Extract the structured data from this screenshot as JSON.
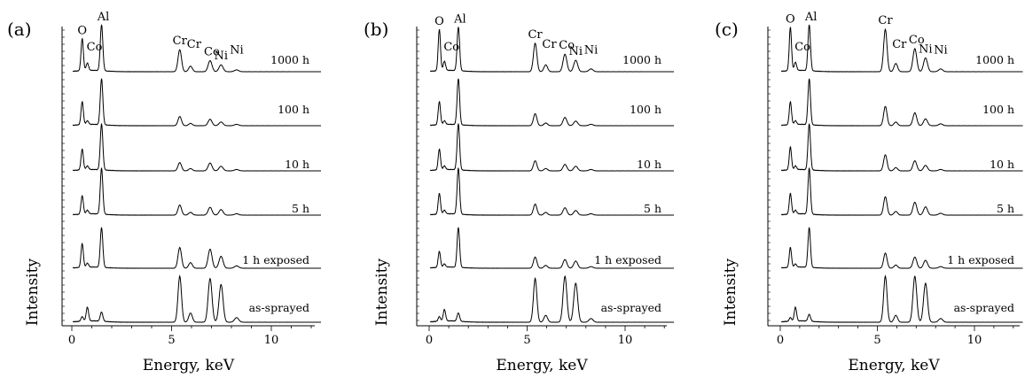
{
  "chart_data": [
    {
      "type": "line",
      "panel_label": "(a)",
      "xlabel": "Energy, keV",
      "ylabel": "Intensity",
      "xlim": [
        -0.5,
        12.5
      ],
      "xticks": [
        0,
        5,
        10
      ],
      "peak_labels": [
        {
          "text": "O",
          "x": 0.52
        },
        {
          "text": "Co",
          "x": 0.78
        },
        {
          "text": "Al",
          "x": 1.49
        },
        {
          "text": "Cr",
          "x": 5.41
        },
        {
          "text": "Cr",
          "x": 5.95
        },
        {
          "text": "Co",
          "x": 6.93
        },
        {
          "text": "Ni",
          "x": 7.48
        },
        {
          "text": "Ni",
          "x": 8.26
        }
      ],
      "series": [
        {
          "name": "1000 h",
          "peaks": [
            {
              "x": 0.52,
              "y": 0.7
            },
            {
              "x": 0.78,
              "y": 0.16
            },
            {
              "x": 1.49,
              "y": 1.0
            },
            {
              "x": 5.41,
              "y": 0.48
            },
            {
              "x": 5.95,
              "y": 0.12
            },
            {
              "x": 6.93,
              "y": 0.24
            },
            {
              "x": 7.48,
              "y": 0.15
            },
            {
              "x": 8.26,
              "y": 0.04
            }
          ]
        },
        {
          "name": "100 h",
          "peaks": [
            {
              "x": 0.52,
              "y": 0.5
            },
            {
              "x": 0.78,
              "y": 0.08
            },
            {
              "x": 1.49,
              "y": 1.0
            },
            {
              "x": 5.41,
              "y": 0.2
            },
            {
              "x": 5.95,
              "y": 0.05
            },
            {
              "x": 6.93,
              "y": 0.14
            },
            {
              "x": 7.48,
              "y": 0.08
            },
            {
              "x": 8.26,
              "y": 0.03
            }
          ]
        },
        {
          "name": "10 h",
          "peaks": [
            {
              "x": 0.52,
              "y": 0.45
            },
            {
              "x": 0.78,
              "y": 0.08
            },
            {
              "x": 1.49,
              "y": 1.0
            },
            {
              "x": 5.41,
              "y": 0.18
            },
            {
              "x": 5.95,
              "y": 0.05
            },
            {
              "x": 6.93,
              "y": 0.17
            },
            {
              "x": 7.48,
              "y": 0.1
            },
            {
              "x": 8.26,
              "y": 0.03
            }
          ]
        },
        {
          "name": "5 h",
          "peaks": [
            {
              "x": 0.52,
              "y": 0.4
            },
            {
              "x": 0.78,
              "y": 0.08
            },
            {
              "x": 1.49,
              "y": 1.0
            },
            {
              "x": 5.41,
              "y": 0.22
            },
            {
              "x": 5.95,
              "y": 0.06
            },
            {
              "x": 6.93,
              "y": 0.17
            },
            {
              "x": 7.48,
              "y": 0.12
            },
            {
              "x": 8.26,
              "y": 0.03
            }
          ]
        },
        {
          "name": "1 h  exposed",
          "peaks": [
            {
              "x": 0.52,
              "y": 0.6
            },
            {
              "x": 0.78,
              "y": 0.1
            },
            {
              "x": 1.49,
              "y": 1.0
            },
            {
              "x": 5.41,
              "y": 0.52
            },
            {
              "x": 5.95,
              "y": 0.14
            },
            {
              "x": 6.93,
              "y": 0.48
            },
            {
              "x": 7.48,
              "y": 0.3
            },
            {
              "x": 8.26,
              "y": 0.06
            }
          ]
        },
        {
          "name": "as-sprayed",
          "peaks": [
            {
              "x": 0.52,
              "y": 0.1
            },
            {
              "x": 0.78,
              "y": 0.3
            },
            {
              "x": 1.49,
              "y": 0.2
            },
            {
              "x": 5.41,
              "y": 1.0
            },
            {
              "x": 5.95,
              "y": 0.2
            },
            {
              "x": 6.93,
              "y": 0.95
            },
            {
              "x": 7.48,
              "y": 0.82
            },
            {
              "x": 8.26,
              "y": 0.1
            }
          ]
        }
      ]
    },
    {
      "type": "line",
      "panel_label": "(b)",
      "xlabel": "Energy, keV",
      "ylabel": "Intensity",
      "xlim": [
        -0.5,
        12.5
      ],
      "xticks": [
        0,
        5,
        10
      ],
      "peak_labels": [
        {
          "text": "O",
          "x": 0.52
        },
        {
          "text": "Co",
          "x": 0.78
        },
        {
          "text": "Al",
          "x": 1.49
        },
        {
          "text": "Cr",
          "x": 5.41
        },
        {
          "text": "Cr",
          "x": 5.95
        },
        {
          "text": "Co",
          "x": 6.93
        },
        {
          "text": "Ni",
          "x": 7.48
        },
        {
          "text": "Ni",
          "x": 8.26
        }
      ],
      "series": [
        {
          "name": "1000 h",
          "peaks": [
            {
              "x": 0.52,
              "y": 0.9
            },
            {
              "x": 0.78,
              "y": 0.2
            },
            {
              "x": 1.49,
              "y": 0.95
            },
            {
              "x": 5.41,
              "y": 0.62
            },
            {
              "x": 5.95,
              "y": 0.15
            },
            {
              "x": 6.93,
              "y": 0.38
            },
            {
              "x": 7.48,
              "y": 0.25
            },
            {
              "x": 8.26,
              "y": 0.06
            }
          ]
        },
        {
          "name": "100 h",
          "peaks": [
            {
              "x": 0.52,
              "y": 0.5
            },
            {
              "x": 0.78,
              "y": 0.08
            },
            {
              "x": 1.49,
              "y": 1.0
            },
            {
              "x": 5.41,
              "y": 0.26
            },
            {
              "x": 5.95,
              "y": 0.06
            },
            {
              "x": 6.93,
              "y": 0.18
            },
            {
              "x": 7.48,
              "y": 0.1
            },
            {
              "x": 8.26,
              "y": 0.03
            }
          ]
        },
        {
          "name": "10 h",
          "peaks": [
            {
              "x": 0.52,
              "y": 0.45
            },
            {
              "x": 0.78,
              "y": 0.08
            },
            {
              "x": 1.49,
              "y": 1.0
            },
            {
              "x": 5.41,
              "y": 0.22
            },
            {
              "x": 5.95,
              "y": 0.05
            },
            {
              "x": 6.93,
              "y": 0.14
            },
            {
              "x": 7.48,
              "y": 0.1
            },
            {
              "x": 8.26,
              "y": 0.03
            }
          ]
        },
        {
          "name": "5 h",
          "peaks": [
            {
              "x": 0.52,
              "y": 0.45
            },
            {
              "x": 0.78,
              "y": 0.08
            },
            {
              "x": 1.49,
              "y": 1.0
            },
            {
              "x": 5.41,
              "y": 0.24
            },
            {
              "x": 5.95,
              "y": 0.06
            },
            {
              "x": 6.93,
              "y": 0.16
            },
            {
              "x": 7.48,
              "y": 0.1
            },
            {
              "x": 8.26,
              "y": 0.03
            }
          ]
        },
        {
          "name": "1 h  exposed",
          "peaks": [
            {
              "x": 0.52,
              "y": 0.4
            },
            {
              "x": 0.78,
              "y": 0.08
            },
            {
              "x": 1.49,
              "y": 1.0
            },
            {
              "x": 5.41,
              "y": 0.28
            },
            {
              "x": 5.95,
              "y": 0.07
            },
            {
              "x": 6.93,
              "y": 0.22
            },
            {
              "x": 7.48,
              "y": 0.18
            },
            {
              "x": 8.26,
              "y": 0.04
            }
          ]
        },
        {
          "name": "as-sprayed",
          "peaks": [
            {
              "x": 0.52,
              "y": 0.1
            },
            {
              "x": 0.78,
              "y": 0.25
            },
            {
              "x": 1.49,
              "y": 0.18
            },
            {
              "x": 5.41,
              "y": 0.95
            },
            {
              "x": 5.95,
              "y": 0.15
            },
            {
              "x": 6.93,
              "y": 1.0
            },
            {
              "x": 7.48,
              "y": 0.85
            },
            {
              "x": 8.26,
              "y": 0.08
            }
          ]
        }
      ]
    },
    {
      "type": "line",
      "panel_label": "(c)",
      "xlabel": "Energy, keV",
      "ylabel": "Intensity",
      "xlim": [
        -0.5,
        12.5
      ],
      "xticks": [
        0,
        5,
        10
      ],
      "peak_labels": [
        {
          "text": "O",
          "x": 0.52
        },
        {
          "text": "Co",
          "x": 0.78
        },
        {
          "text": "Al",
          "x": 1.49
        },
        {
          "text": "Cr",
          "x": 5.41
        },
        {
          "text": "Cr",
          "x": 5.95
        },
        {
          "text": "Co",
          "x": 6.93
        },
        {
          "text": "Ni",
          "x": 7.48
        },
        {
          "text": "Ni",
          "x": 8.26
        }
      ],
      "series": [
        {
          "name": "1000 h",
          "peaks": [
            {
              "x": 0.52,
              "y": 0.95
            },
            {
              "x": 0.78,
              "y": 0.18
            },
            {
              "x": 1.49,
              "y": 1.0
            },
            {
              "x": 5.41,
              "y": 0.92
            },
            {
              "x": 5.95,
              "y": 0.18
            },
            {
              "x": 6.93,
              "y": 0.5
            },
            {
              "x": 7.48,
              "y": 0.3
            },
            {
              "x": 8.26,
              "y": 0.06
            }
          ]
        },
        {
          "name": "100 h",
          "peaks": [
            {
              "x": 0.52,
              "y": 0.5
            },
            {
              "x": 0.78,
              "y": 0.08
            },
            {
              "x": 1.49,
              "y": 1.0
            },
            {
              "x": 5.41,
              "y": 0.42
            },
            {
              "x": 5.95,
              "y": 0.08
            },
            {
              "x": 6.93,
              "y": 0.28
            },
            {
              "x": 7.48,
              "y": 0.15
            },
            {
              "x": 8.26,
              "y": 0.04
            }
          ]
        },
        {
          "name": "10 h",
          "peaks": [
            {
              "x": 0.52,
              "y": 0.5
            },
            {
              "x": 0.78,
              "y": 0.08
            },
            {
              "x": 1.49,
              "y": 1.0
            },
            {
              "x": 5.41,
              "y": 0.35
            },
            {
              "x": 5.95,
              "y": 0.07
            },
            {
              "x": 6.93,
              "y": 0.22
            },
            {
              "x": 7.48,
              "y": 0.12
            },
            {
              "x": 8.26,
              "y": 0.03
            }
          ]
        },
        {
          "name": "5 h",
          "peaks": [
            {
              "x": 0.52,
              "y": 0.45
            },
            {
              "x": 0.78,
              "y": 0.08
            },
            {
              "x": 1.49,
              "y": 1.0
            },
            {
              "x": 5.41,
              "y": 0.4
            },
            {
              "x": 5.95,
              "y": 0.08
            },
            {
              "x": 6.93,
              "y": 0.28
            },
            {
              "x": 7.48,
              "y": 0.18
            },
            {
              "x": 8.26,
              "y": 0.04
            }
          ]
        },
        {
          "name": "1 h  exposed",
          "peaks": [
            {
              "x": 0.52,
              "y": 0.5
            },
            {
              "x": 0.78,
              "y": 0.08
            },
            {
              "x": 1.49,
              "y": 1.0
            },
            {
              "x": 5.41,
              "y": 0.38
            },
            {
              "x": 5.95,
              "y": 0.08
            },
            {
              "x": 6.93,
              "y": 0.28
            },
            {
              "x": 7.48,
              "y": 0.2
            },
            {
              "x": 8.26,
              "y": 0.04
            }
          ]
        },
        {
          "name": "as-sprayed",
          "peaks": [
            {
              "x": 0.52,
              "y": 0.08
            },
            {
              "x": 0.78,
              "y": 0.3
            },
            {
              "x": 1.49,
              "y": 0.15
            },
            {
              "x": 5.41,
              "y": 1.0
            },
            {
              "x": 5.95,
              "y": 0.15
            },
            {
              "x": 6.93,
              "y": 1.0
            },
            {
              "x": 7.48,
              "y": 0.85
            },
            {
              "x": 8.26,
              "y": 0.08
            }
          ]
        }
      ]
    }
  ]
}
